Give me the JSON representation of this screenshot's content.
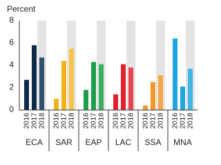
{
  "chart_data": {
    "type": "grouped-bar",
    "y_label": "Percent",
    "subcategories": [
      "2016",
      "2017",
      "2018"
    ],
    "groups": [
      {
        "name": "ECA",
        "colors": [
          "#0f2b4c",
          "#0f2b4c",
          "#34506f"
        ],
        "values": [
          2.7,
          5.8,
          4.7
        ]
      },
      {
        "name": "SAR",
        "colors": [
          "#f2b21c",
          "#f2b21c",
          "#f5c44a"
        ],
        "values": [
          1.0,
          4.4,
          5.5
        ]
      },
      {
        "name": "EAP",
        "colors": [
          "#1e9e4a",
          "#1e9e4a",
          "#3bb062"
        ],
        "values": [
          1.8,
          4.3,
          4.1
        ]
      },
      {
        "name": "LAC",
        "colors": [
          "#e4202e",
          "#e4202e",
          "#e8454f"
        ],
        "values": [
          1.4,
          4.1,
          3.8
        ]
      },
      {
        "name": "SSA",
        "colors": [
          "#f4962a",
          "#f4962a",
          "#f6a84a"
        ],
        "values": [
          0.4,
          2.5,
          3.1
        ]
      },
      {
        "name": "MNA",
        "colors": [
          "#1ea6e0",
          "#1ea6e0",
          "#42b6e6"
        ],
        "values": [
          6.4,
          2.1,
          3.7
        ]
      }
    ],
    "shade_index": 2,
    "shade_color": "#e4e4e4",
    "ylim": [
      0,
      8
    ],
    "yticks": [
      0,
      2,
      4,
      6,
      8
    ]
  }
}
